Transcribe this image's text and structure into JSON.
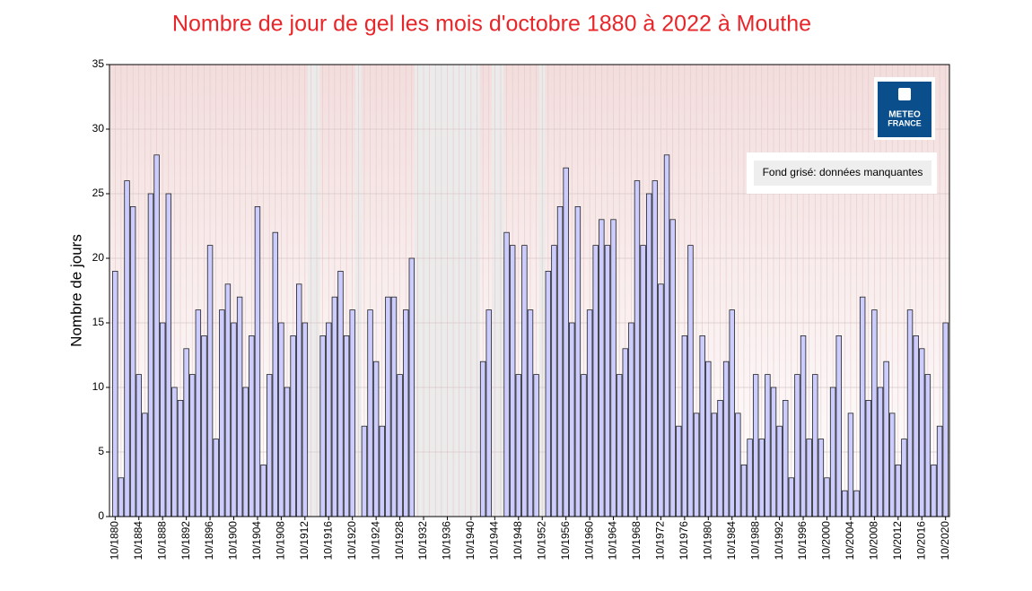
{
  "chart_data": {
    "type": "bar",
    "title": "Nombre de jour de gel les mois d'octobre 1880 à 2022 à Mouthe",
    "y_label": "Nombre de jours",
    "note": "Fond grisé: données manquantes",
    "logo_text": [
      "METEO",
      "FRANCE"
    ],
    "color": "#ccccff",
    "missing_color": "#ebebeb",
    "grid": true,
    "ylim": [
      0,
      35
    ],
    "yticks": [
      0,
      5,
      10,
      15,
      20,
      25,
      30,
      35
    ],
    "categories": [
      "10/1880",
      null,
      null,
      null,
      "10/1884",
      null,
      null,
      null,
      "10/1888",
      null,
      null,
      null,
      "10/1892",
      null,
      null,
      null,
      "10/1896",
      null,
      null,
      null,
      "10/1900",
      null,
      null,
      null,
      "10/1904",
      null,
      null,
      null,
      "10/1908",
      null,
      null,
      null,
      "10/1912",
      null,
      null,
      null,
      "10/1916",
      null,
      null,
      null,
      "10/1920",
      null,
      null,
      null,
      "10/1924",
      null,
      null,
      null,
      "10/1928",
      null,
      null,
      null,
      "10/1932",
      null,
      null,
      null,
      "10/1936",
      null,
      null,
      null,
      "10/1940",
      null,
      null,
      null,
      "10/1944",
      null,
      null,
      null,
      "10/1948",
      null,
      null,
      null,
      "10/1952",
      null,
      null,
      null,
      "10/1956",
      null,
      null,
      null,
      "10/1960",
      null,
      null,
      null,
      "10/1964",
      null,
      null,
      null,
      "10/1968",
      null,
      null,
      null,
      "10/1972",
      null,
      null,
      null,
      "10/1976",
      null,
      null,
      null,
      "10/1980",
      null,
      null,
      null,
      "10/1984",
      null,
      null,
      null,
      "10/1988",
      null,
      null,
      null,
      "10/1992",
      null,
      null,
      null,
      "10/1996",
      null,
      null,
      null,
      "10/2000",
      null,
      null,
      null,
      "10/2004",
      null,
      null,
      null,
      "10/2008",
      null,
      null,
      null,
      "10/2012",
      null,
      null,
      null,
      "10/2016",
      null,
      null,
      null,
      "10/2020"
    ],
    "values": [
      19,
      3,
      26,
      24,
      11,
      8,
      25,
      28,
      15,
      25,
      10,
      9,
      13,
      11,
      16,
      14,
      21,
      6,
      16,
      18,
      15,
      17,
      10,
      14,
      24,
      4,
      11,
      22,
      15,
      10,
      14,
      18,
      15,
      null,
      null,
      14,
      15,
      17,
      19,
      14,
      16,
      null,
      7,
      16,
      12,
      7,
      17,
      17,
      11,
      16,
      20,
      null,
      null,
      null,
      null,
      null,
      null,
      null,
      null,
      null,
      null,
      null,
      12,
      16,
      null,
      null,
      22,
      21,
      11,
      21,
      16,
      11,
      null,
      19,
      21,
      24,
      27,
      15,
      24,
      11,
      16,
      21,
      23,
      21,
      23,
      11,
      13,
      15,
      26,
      21,
      25,
      26,
      18,
      28,
      23,
      7,
      14,
      21,
      8,
      14,
      12,
      8,
      9,
      12,
      16,
      8,
      4,
      6,
      11,
      6,
      11,
      10,
      7,
      9,
      3,
      11,
      14,
      6,
      11,
      6,
      3,
      10,
      14,
      2,
      8,
      2,
      17,
      9,
      16,
      10,
      12,
      8,
      4,
      6,
      16,
      14,
      13,
      11,
      4,
      7,
      15
    ]
  }
}
